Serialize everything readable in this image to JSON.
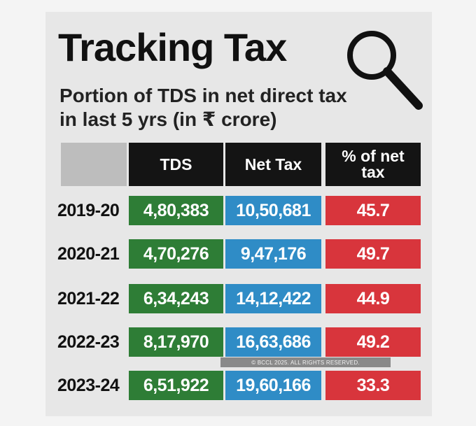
{
  "page": {
    "title": "Tracking Tax",
    "subtitle_line1": "Portion of TDS in net direct tax",
    "subtitle_line2": "in last 5 yrs (in ₹ crore)",
    "icon": "magnifier-icon",
    "copyright": "© BCCL 2025. ALL RIGHTS RESERVED."
  },
  "table": {
    "headers": {
      "tds": "TDS",
      "net_tax": "Net Tax",
      "pct_line1": "% of net",
      "pct_line2": "tax"
    },
    "rows": [
      {
        "year": "2019-20",
        "tds": "4,80,383",
        "net_tax": "10,50,681",
        "pct": "45.7"
      },
      {
        "year": "2020-21",
        "tds": "4,70,276",
        "net_tax": "9,47,176",
        "pct": "49.7"
      },
      {
        "year": "2021-22",
        "tds": "6,34,243",
        "net_tax": "14,12,422",
        "pct": "44.9"
      },
      {
        "year": "2022-23",
        "tds": "8,17,970",
        "net_tax": "16,63,686",
        "pct": "49.2"
      },
      {
        "year": "2023-24",
        "tds": "6,51,922",
        "net_tax": "19,60,166",
        "pct": "33.3"
      }
    ]
  },
  "colors": {
    "tds_cell": "#2e7d36",
    "net_tax_cell": "#2f8cc6",
    "pct_cell": "#d8353c",
    "header_bg": "#141414",
    "card_bg": "#e7e7e7"
  }
}
